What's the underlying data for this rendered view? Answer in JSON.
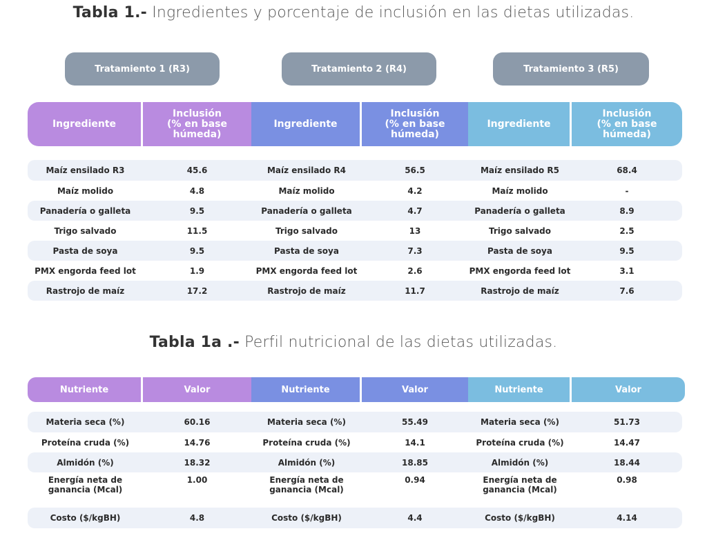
{
  "table1": {
    "title_bold": "Tabla 1.-",
    "title_text": "Ingredientes y porcentaje de inclusión en las dietas utilizadas.",
    "treatments": [
      "Tratamiento 1 (R3)",
      "Tratamiento 2 (R4)",
      "Tratamiento 3 (R5)"
    ],
    "col_ingrediente": "Ingrediente",
    "col_inclusion": [
      "Inclusión",
      "(% en base",
      "húmeda)"
    ],
    "rows": [
      [
        "Maíz ensilado R3",
        "45.6",
        "Maíz ensilado R4",
        "56.5",
        "Maíz ensilado R5",
        "68.4"
      ],
      [
        "Maíz molido",
        "4.8",
        "Maíz molido",
        "4.2",
        "Maíz molido",
        "-"
      ],
      [
        "Panadería o galleta",
        "9.5",
        "Panadería o galleta",
        "4.7",
        "Panadería o galleta",
        "8.9"
      ],
      [
        "Trigo salvado",
        "11.5",
        "Trigo salvado",
        "13",
        "Trigo salvado",
        "2.5"
      ],
      [
        "Pasta de soya",
        "9.5",
        "Pasta de soya",
        "7.3",
        "Pasta de soya",
        "9.5"
      ],
      [
        "PMX engorda feed lot",
        "1.9",
        "PMX engorda feed lot",
        "2.6",
        "PMX engorda feed lot",
        "3.1"
      ],
      [
        "Rastrojo de maíz",
        "17.2",
        "Rastrojo de maíz",
        "11.7",
        "Rastrojo de maíz",
        "7.6"
      ]
    ]
  },
  "table1a": {
    "title_bold": "Tabla 1a .-",
    "title_text": "Perfil nutricional de las dietas utilizadas.",
    "col_nutriente": "Nutriente",
    "col_valor": "Valor",
    "rows": [
      [
        "Materia seca (%)",
        "60.16",
        "Materia seca (%)",
        "55.49",
        "Materia seca (%)",
        "51.73"
      ],
      [
        "Proteína cruda (%)",
        "14.76",
        "Proteína cruda (%)",
        "14.1",
        "Proteína cruda (%)",
        "14.47"
      ],
      [
        "Almidón (%)",
        "18.32",
        "Almidón (%)",
        "18.85",
        "Almidón (%)",
        "18.44"
      ],
      [
        "Energía neta de ganancia (Mcal)",
        "1.00",
        "Energía neta de ganancia (Mcal)",
        "0.94",
        "Energía neta de ganancia (Mcal)",
        "0.98"
      ],
      [
        "Costo ($/kgBH)",
        "4.8",
        "Costo ($/kgBH)",
        "4.4",
        "Costo ($/kgBH)",
        "4.14"
      ]
    ]
  },
  "colors": {
    "purple": "#b98be0",
    "blue": "#7a90e2",
    "light_blue": "#7bbde0",
    "treatment": "#8c9aaa"
  }
}
